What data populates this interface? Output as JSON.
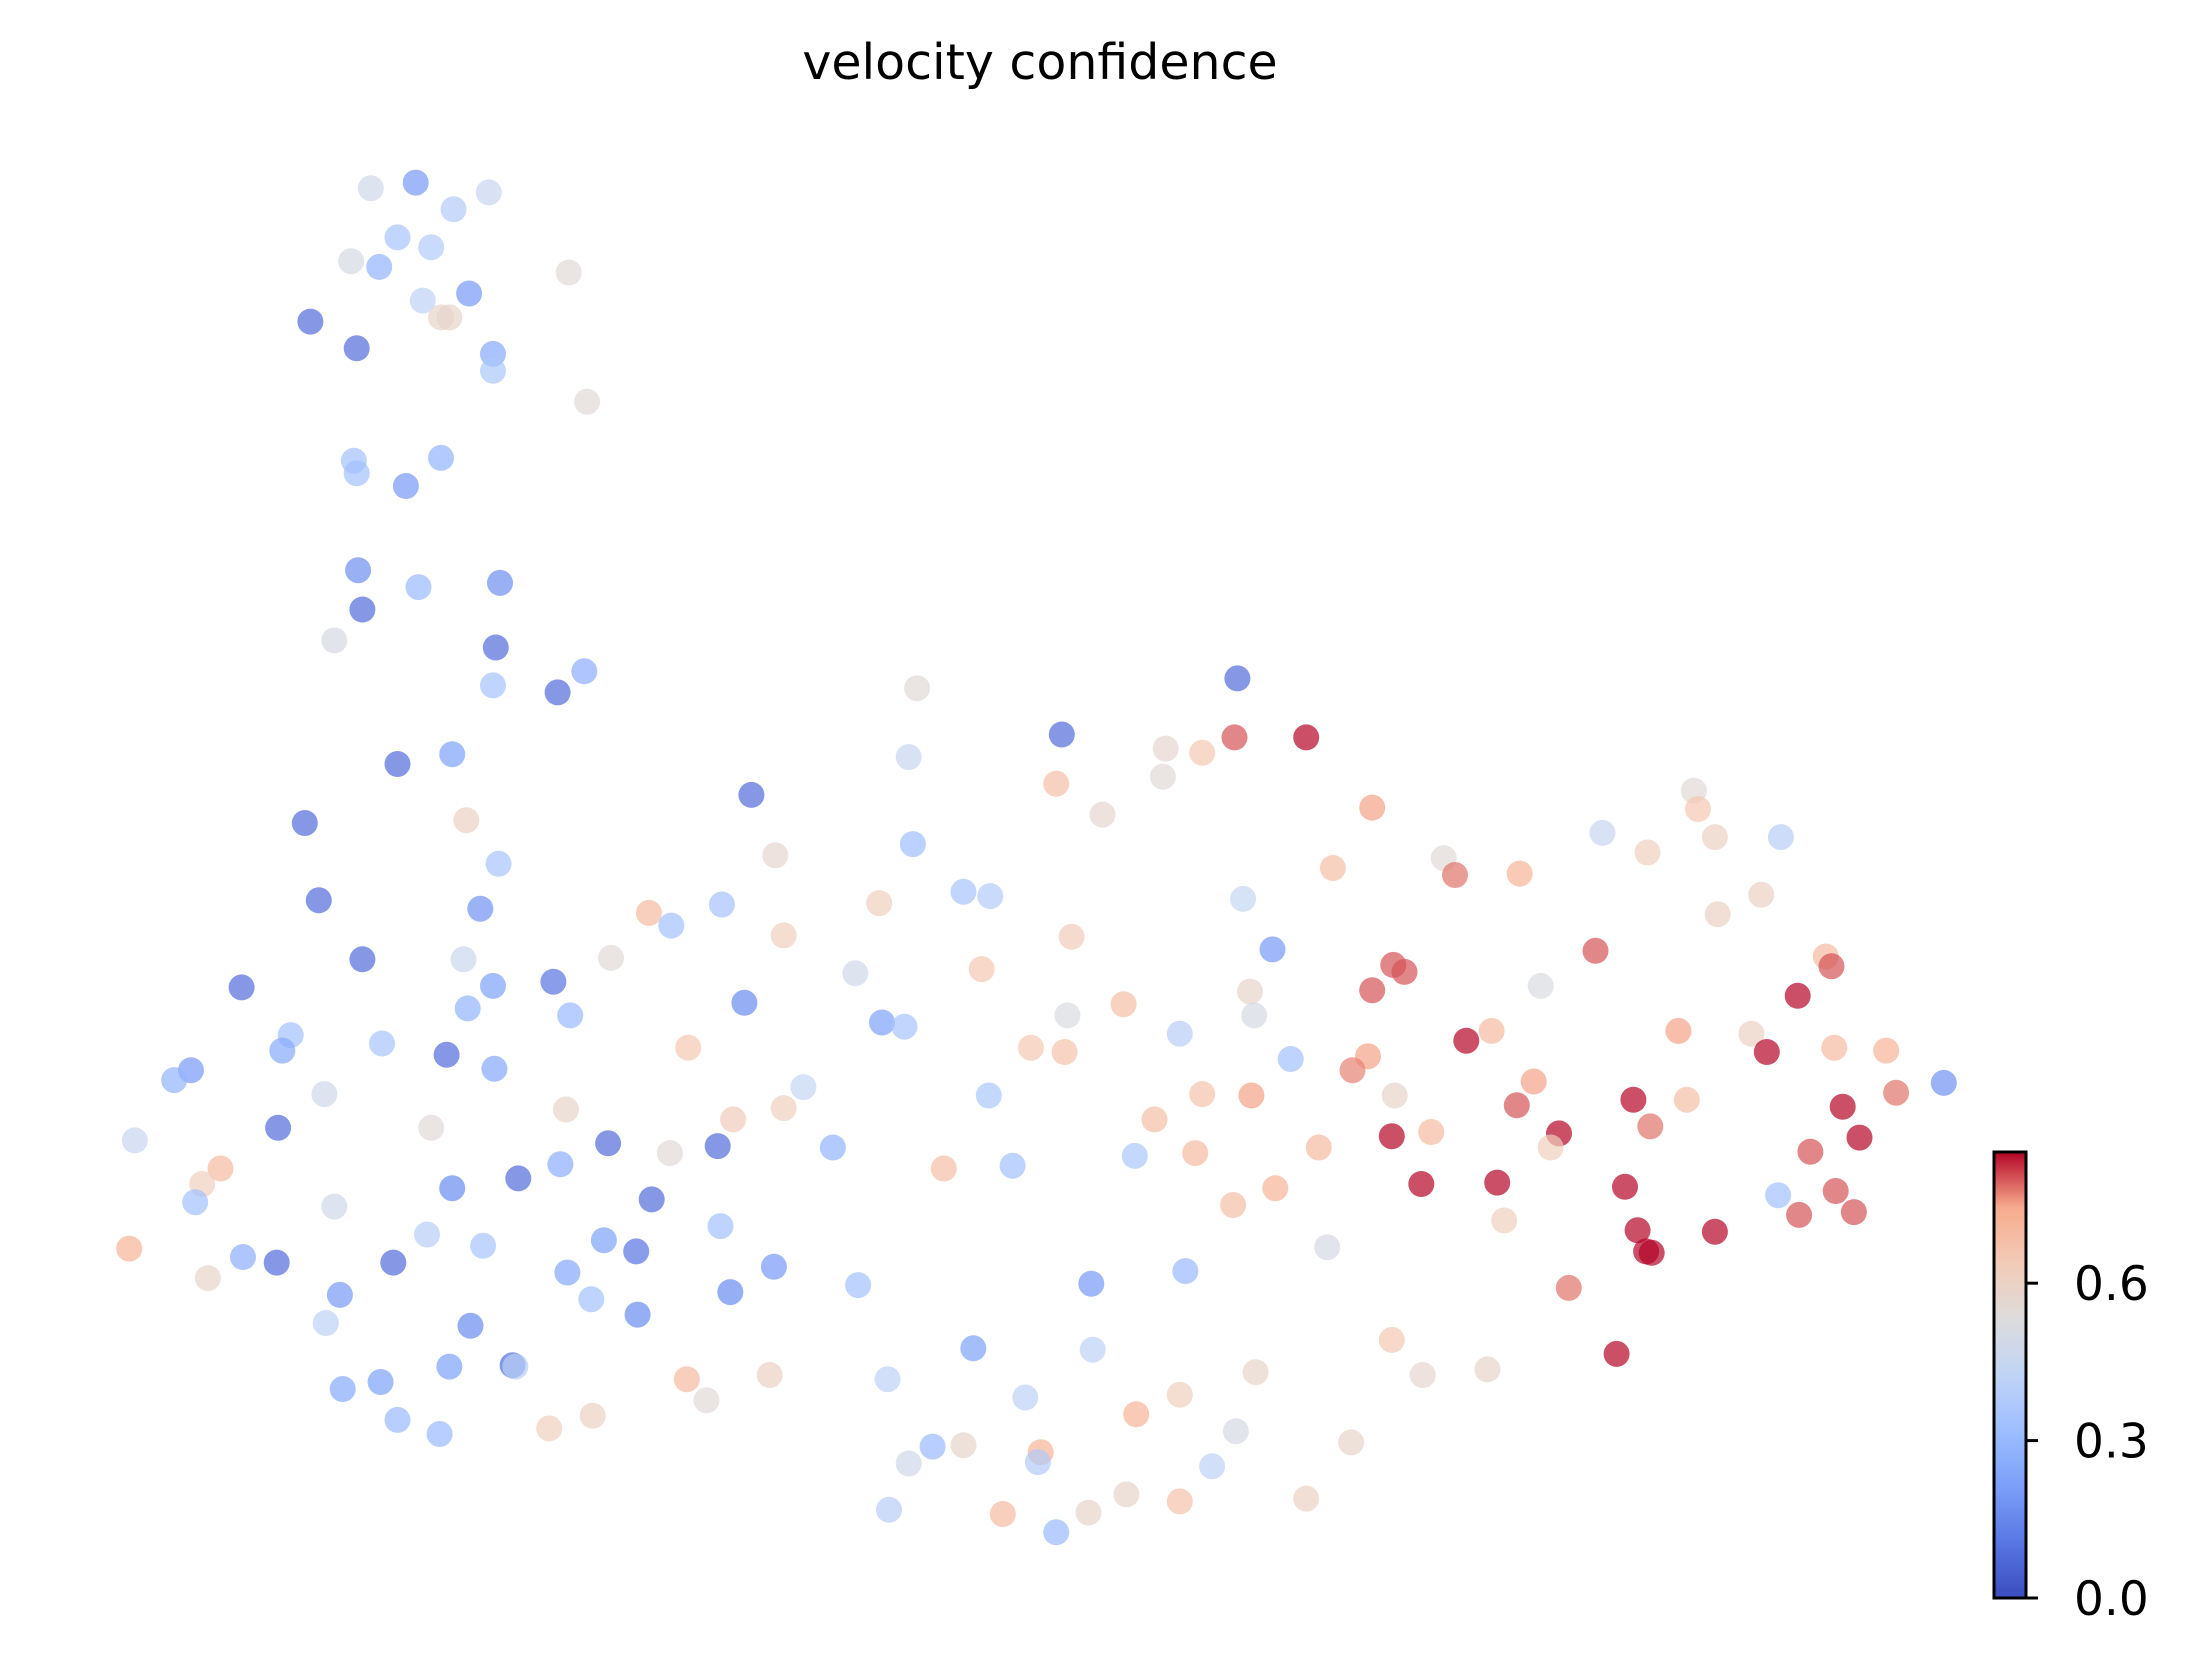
{
  "chart_data": {
    "type": "scatter",
    "title": "velocity confidence",
    "xlabel": "",
    "ylabel": "",
    "axes_visible": false,
    "grid": false,
    "colormap": "coolwarm",
    "color_range": [
      0.0,
      0.85
    ],
    "colorbar": {
      "placement": "bottom-right",
      "ticks": [
        0.0,
        0.3,
        0.6
      ],
      "tick_labels": [
        "0.0",
        "0.3",
        "0.6"
      ]
    },
    "points": [
      [
        296,
        130,
        0.2
      ],
      [
        264,
        134,
        0.48
      ],
      [
        348,
        137,
        0.45
      ],
      [
        323,
        149,
        0.38
      ],
      [
        283,
        169,
        0.35
      ],
      [
        307,
        176,
        0.38
      ],
      [
        250,
        186,
        0.5
      ],
      [
        270,
        190,
        0.28
      ],
      [
        405,
        194,
        0.55
      ],
      [
        334,
        209,
        0.2
      ],
      [
        301,
        214,
        0.42
      ],
      [
        314,
        226,
        0.58
      ],
      [
        320,
        226,
        0.58
      ],
      [
        221,
        229,
        0.08
      ],
      [
        254,
        248,
        0.08
      ],
      [
        351,
        252,
        0.25
      ],
      [
        351,
        264,
        0.36
      ],
      [
        418,
        286,
        0.55
      ],
      [
        252,
        328,
        0.33
      ],
      [
        314,
        326,
        0.28
      ],
      [
        254,
        337,
        0.33
      ],
      [
        289,
        346,
        0.2
      ],
      [
        255,
        406,
        0.17
      ],
      [
        356,
        415,
        0.17
      ],
      [
        298,
        418,
        0.3
      ],
      [
        258,
        434,
        0.08
      ],
      [
        238,
        456,
        0.5
      ],
      [
        353,
        461,
        0.08
      ],
      [
        351,
        488,
        0.34
      ],
      [
        416,
        478,
        0.26
      ],
      [
        397,
        493,
        0.08
      ],
      [
        653,
        490,
        0.55
      ],
      [
        881,
        483,
        0.08
      ],
      [
        756,
        523,
        0.08
      ],
      [
        930,
        525,
        0.85
      ],
      [
        879,
        525,
        0.8
      ],
      [
        830,
        533,
        0.57
      ],
      [
        856,
        536,
        0.65
      ],
      [
        828,
        553,
        0.55
      ],
      [
        647,
        539,
        0.45
      ],
      [
        752,
        558,
        0.68
      ],
      [
        785,
        580,
        0.57
      ],
      [
        283,
        544,
        0.08
      ],
      [
        322,
        537,
        0.22
      ],
      [
        535,
        566,
        0.08
      ],
      [
        217,
        586,
        0.08
      ],
      [
        332,
        584,
        0.6
      ],
      [
        355,
        615,
        0.35
      ],
      [
        552,
        609,
        0.57
      ],
      [
        650,
        601,
        0.32
      ],
      [
        977,
        575,
        0.75
      ],
      [
        949,
        618,
        0.68
      ],
      [
        1028,
        611,
        0.55
      ],
      [
        1036,
        623,
        0.78
      ],
      [
        1082,
        622,
        0.72
      ],
      [
        1141,
        593,
        0.45
      ],
      [
        1173,
        607,
        0.62
      ],
      [
        1206,
        563,
        0.55
      ],
      [
        1209,
        576,
        0.65
      ],
      [
        1221,
        596,
        0.6
      ],
      [
        1268,
        596,
        0.4
      ],
      [
        1254,
        637,
        0.6
      ],
      [
        1223,
        651,
        0.6
      ],
      [
        227,
        641,
        0.08
      ],
      [
        342,
        647,
        0.18
      ],
      [
        462,
        650,
        0.7
      ],
      [
        478,
        659,
        0.33
      ],
      [
        514,
        644,
        0.34
      ],
      [
        626,
        643,
        0.62
      ],
      [
        686,
        635,
        0.35
      ],
      [
        705,
        638,
        0.38
      ],
      [
        885,
        640,
        0.44
      ],
      [
        558,
        666,
        0.62
      ],
      [
        763,
        667,
        0.63
      ],
      [
        258,
        683,
        0.08
      ],
      [
        330,
        683,
        0.46
      ],
      [
        435,
        682,
        0.55
      ],
      [
        172,
        703,
        0.08
      ],
      [
        351,
        702,
        0.22
      ],
      [
        394,
        699,
        0.1
      ],
      [
        609,
        693,
        0.48
      ],
      [
        699,
        690,
        0.65
      ],
      [
        906,
        676,
        0.2
      ],
      [
        992,
        687,
        0.8
      ],
      [
        1000,
        692,
        0.8
      ],
      [
        977,
        705,
        0.8
      ],
      [
        1136,
        677,
        0.8
      ],
      [
        1097,
        702,
        0.52
      ],
      [
        1300,
        681,
        0.7
      ],
      [
        1304,
        688,
        0.8
      ],
      [
        1280,
        709,
        0.85
      ],
      [
        207,
        737,
        0.33
      ],
      [
        201,
        748,
        0.25
      ],
      [
        333,
        718,
        0.28
      ],
      [
        406,
        723,
        0.3
      ],
      [
        530,
        714,
        0.16
      ],
      [
        628,
        728,
        0.22
      ],
      [
        644,
        731,
        0.35
      ],
      [
        760,
        723,
        0.52
      ],
      [
        800,
        715,
        0.68
      ],
      [
        890,
        706,
        0.58
      ],
      [
        893,
        723,
        0.5
      ],
      [
        840,
        736,
        0.4
      ],
      [
        1044,
        741,
        0.85
      ],
      [
        1062,
        734,
        0.7
      ],
      [
        1195,
        734,
        0.75
      ],
      [
        1247,
        736,
        0.6
      ],
      [
        1258,
        749,
        0.85
      ],
      [
        1306,
        746,
        0.7
      ],
      [
        1343,
        748,
        0.72
      ],
      [
        136,
        762,
        0.2
      ],
      [
        124,
        769,
        0.28
      ],
      [
        272,
        743,
        0.35
      ],
      [
        318,
        751,
        0.08
      ],
      [
        352,
        761,
        0.24
      ],
      [
        490,
        746,
        0.65
      ],
      [
        734,
        746,
        0.65
      ],
      [
        758,
        749,
        0.67
      ],
      [
        919,
        754,
        0.33
      ],
      [
        974,
        752,
        0.75
      ],
      [
        963,
        762,
        0.77
      ],
      [
        231,
        779,
        0.48
      ],
      [
        572,
        774,
        0.44
      ],
      [
        704,
        780,
        0.36
      ],
      [
        856,
        779,
        0.67
      ],
      [
        891,
        780,
        0.75
      ],
      [
        993,
        780,
        0.58
      ],
      [
        1092,
        770,
        0.75
      ],
      [
        1080,
        787,
        0.8
      ],
      [
        1163,
        783,
        0.85
      ],
      [
        1201,
        783,
        0.68
      ],
      [
        1312,
        788,
        0.85
      ],
      [
        1350,
        778,
        0.78
      ],
      [
        1384,
        771,
        0.18
      ],
      [
        96,
        812,
        0.45
      ],
      [
        198,
        803,
        0.08
      ],
      [
        307,
        803,
        0.55
      ],
      [
        403,
        790,
        0.58
      ],
      [
        522,
        797,
        0.63
      ],
      [
        558,
        789,
        0.62
      ],
      [
        822,
        797,
        0.68
      ],
      [
        1019,
        806,
        0.7
      ],
      [
        991,
        809,
        0.85
      ],
      [
        1110,
        807,
        0.85
      ],
      [
        1175,
        802,
        0.78
      ],
      [
        1104,
        817,
        0.62
      ],
      [
        1324,
        810,
        0.85
      ],
      [
        157,
        832,
        0.7
      ],
      [
        144,
        843,
        0.62
      ],
      [
        139,
        856,
        0.33
      ],
      [
        399,
        829,
        0.26
      ],
      [
        433,
        814,
        0.08
      ],
      [
        477,
        821,
        0.55
      ],
      [
        511,
        816,
        0.08
      ],
      [
        593,
        817,
        0.28
      ],
      [
        672,
        832,
        0.68
      ],
      [
        721,
        830,
        0.33
      ],
      [
        808,
        823,
        0.36
      ],
      [
        851,
        821,
        0.7
      ],
      [
        939,
        817,
        0.7
      ],
      [
        1289,
        820,
        0.8
      ],
      [
        238,
        859,
        0.48
      ],
      [
        322,
        846,
        0.16
      ],
      [
        369,
        839,
        0.08
      ],
      [
        464,
        854,
        0.08
      ],
      [
        878,
        858,
        0.68
      ],
      [
        908,
        846,
        0.72
      ],
      [
        1012,
        843,
        0.85
      ],
      [
        1066,
        842,
        0.85
      ],
      [
        1157,
        845,
        0.85
      ],
      [
        1266,
        851,
        0.33
      ],
      [
        1307,
        848,
        0.8
      ],
      [
        1281,
        865,
        0.8
      ],
      [
        1320,
        863,
        0.8
      ],
      [
        92,
        889,
        0.72
      ],
      [
        173,
        895,
        0.26
      ],
      [
        197,
        899,
        0.08
      ],
      [
        304,
        879,
        0.4
      ],
      [
        344,
        887,
        0.35
      ],
      [
        430,
        883,
        0.22
      ],
      [
        453,
        891,
        0.1
      ],
      [
        513,
        873,
        0.33
      ],
      [
        1071,
        869,
        0.62
      ],
      [
        1166,
        876,
        0.85
      ],
      [
        1221,
        877,
        0.85
      ],
      [
        1172,
        891,
        0.85
      ],
      [
        1176,
        892,
        0.85
      ],
      [
        148,
        910,
        0.58
      ],
      [
        280,
        899,
        0.08
      ],
      [
        404,
        906,
        0.24
      ],
      [
        551,
        902,
        0.2
      ],
      [
        611,
        915,
        0.33
      ],
      [
        945,
        888,
        0.5
      ],
      [
        242,
        922,
        0.2
      ],
      [
        421,
        925,
        0.33
      ],
      [
        520,
        920,
        0.16
      ],
      [
        777,
        914,
        0.2
      ],
      [
        844,
        905,
        0.3
      ],
      [
        1117,
        917,
        0.78
      ],
      [
        232,
        942,
        0.42
      ],
      [
        335,
        944,
        0.16
      ],
      [
        454,
        936,
        0.16
      ],
      [
        693,
        960,
        0.22
      ],
      [
        778,
        961,
        0.42
      ],
      [
        991,
        954,
        0.65
      ],
      [
        1151,
        964,
        0.85
      ],
      [
        320,
        973,
        0.22
      ],
      [
        365,
        972,
        0.08
      ],
      [
        367,
        973,
        0.4
      ],
      [
        489,
        982,
        0.7
      ],
      [
        548,
        979,
        0.6
      ],
      [
        632,
        982,
        0.42
      ],
      [
        894,
        977,
        0.58
      ],
      [
        1013,
        979,
        0.57
      ],
      [
        1059,
        975,
        0.58
      ],
      [
        244,
        989,
        0.25
      ],
      [
        271,
        984,
        0.22
      ],
      [
        503,
        997,
        0.55
      ],
      [
        730,
        995,
        0.42
      ],
      [
        840,
        993,
        0.62
      ],
      [
        283,
        1011,
        0.3
      ],
      [
        313,
        1021,
        0.3
      ],
      [
        391,
        1017,
        0.62
      ],
      [
        422,
        1008,
        0.6
      ],
      [
        809,
        1007,
        0.72
      ],
      [
        880,
        1019,
        0.5
      ],
      [
        962,
        1027,
        0.58
      ],
      [
        664,
        1030,
        0.3
      ],
      [
        686,
        1029,
        0.58
      ],
      [
        741,
        1034,
        0.72
      ],
      [
        739,
        1041,
        0.38
      ],
      [
        647,
        1042,
        0.48
      ],
      [
        863,
        1044,
        0.42
      ],
      [
        633,
        1075,
        0.4
      ],
      [
        714,
        1078,
        0.7
      ],
      [
        775,
        1077,
        0.58
      ],
      [
        802,
        1064,
        0.58
      ],
      [
        840,
        1069,
        0.67
      ],
      [
        930,
        1067,
        0.6
      ],
      [
        752,
        1091,
        0.3
      ]
    ]
  }
}
